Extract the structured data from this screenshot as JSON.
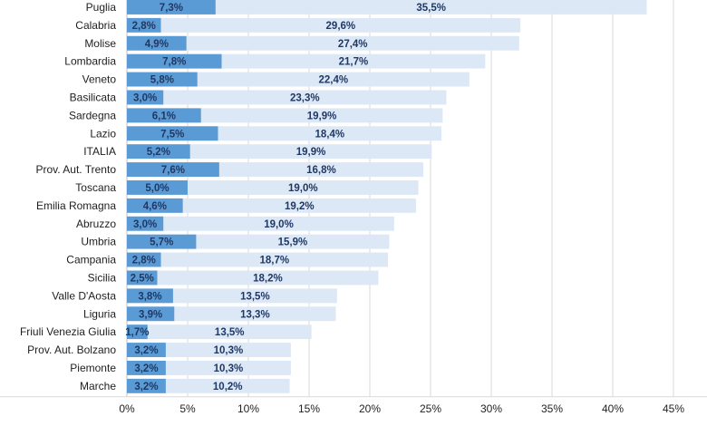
{
  "chart_data": {
    "type": "bar",
    "orientation": "horizontal",
    "stacked": true,
    "categories": [
      "Puglia",
      "Calabria",
      "Molise",
      "Lombardia",
      "Veneto",
      "Basilicata",
      "Sardegna",
      "Lazio",
      "ITALIA",
      "Prov. Aut. Trento",
      "Toscana",
      "Emilia Romagna",
      "Abruzzo",
      "Umbria",
      "Campania",
      "Sicilia",
      "Valle D'Aosta",
      "Liguria",
      "Friuli Venezia Giulia",
      "Prov. Aut. Bolzano",
      "Piemonte",
      "Marche"
    ],
    "series": [
      {
        "values": [
          7.3,
          2.8,
          4.9,
          7.8,
          5.8,
          3.0,
          6.1,
          7.5,
          5.2,
          7.6,
          5.0,
          4.6,
          3.0,
          5.7,
          2.8,
          2.5,
          3.8,
          3.9,
          1.7,
          3.2,
          3.2,
          3.2
        ],
        "labels": [
          "7,3%",
          "2,8%",
          "4,9%",
          "7,8%",
          "5,8%",
          "3,0%",
          "6,1%",
          "7,5%",
          "5,2%",
          "7,6%",
          "5,0%",
          "4,6%",
          "3,0%",
          "5,7%",
          "2,8%",
          "2,5%",
          "3,8%",
          "3,9%",
          "1,7%",
          "3,2%",
          "3,2%",
          "3,2%"
        ],
        "color": "#5b9bd5"
      },
      {
        "values": [
          35.5,
          29.6,
          27.4,
          21.7,
          22.4,
          23.3,
          19.9,
          18.4,
          19.9,
          16.8,
          19.0,
          19.2,
          19.0,
          15.9,
          18.7,
          18.2,
          13.5,
          13.3,
          13.5,
          10.3,
          10.3,
          10.2
        ],
        "labels": [
          "35,5%",
          "29,6%",
          "27,4%",
          "21,7%",
          "22,4%",
          "23,3%",
          "19,9%",
          "18,4%",
          "19,9%",
          "16,8%",
          "19,0%",
          "19,2%",
          "19,0%",
          "15,9%",
          "18,7%",
          "18,2%",
          "13,5%",
          "13,3%",
          "13,5%",
          "10,3%",
          "10,3%",
          "10,2%"
        ],
        "color": "#dde8f6"
      }
    ],
    "xlim": [
      0,
      45
    ],
    "xticks": [
      "0%",
      "5%",
      "10%",
      "15%",
      "20%",
      "25%",
      "30%",
      "35%",
      "40%",
      "45%"
    ],
    "grid": "vertical",
    "legend": "none",
    "title": "",
    "xlabel": "",
    "ylabel": ""
  }
}
